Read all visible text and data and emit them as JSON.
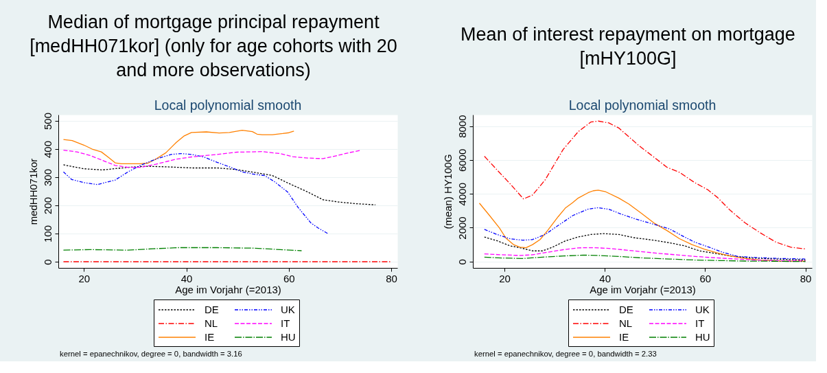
{
  "chart_data": [
    {
      "type": "line",
      "title": "Median of mortgage principal repayment [medHH071kor] (only for age cohorts with 20 and more observations)",
      "subtitle": "Local polynomial smooth",
      "xlabel": "Age im Vorjahr (=2013)",
      "ylabel": "medHH071kor",
      "annotations": [
        "kernel = epanechnikov, degree = 0, bandwidth = 3.16"
      ],
      "xlim": [
        15,
        81.2
      ],
      "ylim": [
        -22,
        522
      ],
      "xticks": [
        20,
        40,
        60,
        80
      ],
      "yticks": [
        0,
        100,
        200,
        300,
        400,
        500
      ],
      "grid": "y",
      "legend": "bottom",
      "series": [
        {
          "name": "DE",
          "color": "#000000",
          "line_style": "dotted",
          "x": [
            16,
            20,
            23.6,
            28.6,
            32,
            36,
            41,
            46,
            49.4,
            53.4,
            56.8,
            60,
            63.3,
            66.7,
            69.7,
            73.2,
            76.9
          ],
          "values": [
            344,
            330,
            326,
            335,
            339,
            337,
            333,
            333,
            328,
            317,
            306,
            278,
            251,
            220,
            212,
            206,
            202
          ]
        },
        {
          "name": "NL",
          "color": "#ff0000",
          "line_style": "dashdot",
          "x": [
            16,
            30,
            50,
            80
          ],
          "values": [
            0,
            0,
            0,
            0
          ]
        },
        {
          "name": "IE",
          "color": "#ff8000",
          "line_style": "solid",
          "x": [
            16,
            17.7,
            20,
            21.6,
            23.4,
            24.9,
            26.1,
            27.3,
            31,
            32.5,
            34,
            36,
            38,
            39.5,
            41,
            43.9,
            46.4,
            48.4,
            50.9,
            52.9,
            53.8,
            54.8,
            56.8,
            58.8,
            60,
            61
          ],
          "values": [
            434,
            430,
            414,
            400,
            390,
            369,
            351,
            348,
            348,
            350,
            364,
            387,
            423,
            446,
            459,
            461,
            457,
            459,
            467,
            462,
            453,
            451,
            451,
            455,
            458,
            464
          ]
        },
        {
          "name": "UK",
          "color": "#0000ff",
          "line_style": "dashdotdot",
          "x": [
            16,
            17.6,
            20,
            22.6,
            26.1,
            28.6,
            31,
            34,
            37,
            39,
            41,
            43.4,
            46,
            48.4,
            50.9,
            53.4,
            55.3,
            57.3,
            59.8,
            61.8,
            64.3,
            65.7,
            67.7
          ],
          "values": [
            319,
            292,
            281,
            274,
            290,
            319,
            342,
            364,
            381,
            384,
            381,
            372,
            353,
            337,
            319,
            310,
            306,
            283,
            247,
            193,
            138,
            120,
            99
          ]
        },
        {
          "name": "IT",
          "color": "#ff00ff",
          "line_style": "dashed",
          "x": [
            16,
            18.6,
            21.1,
            23.6,
            26.1,
            28.6,
            31,
            34,
            38,
            41,
            46,
            49.9,
            54.8,
            58.3,
            60.8,
            63.8,
            66.7,
            69.7,
            71.7,
            73.9
          ],
          "values": [
            396,
            390,
            378,
            360,
            342,
            335,
            335,
            346,
            364,
            372,
            381,
            389,
            391,
            384,
            373,
            368,
            366,
            378,
            387,
            395
          ]
        },
        {
          "name": "HU",
          "color": "#008000",
          "line_style": "longdashdot",
          "x": [
            16,
            21.1,
            28.6,
            33.5,
            38.5,
            46,
            53.4,
            58.3,
            62.5
          ],
          "values": [
            41,
            43,
            41,
            46,
            50,
            50,
            48,
            43,
            39
          ]
        }
      ]
    },
    {
      "type": "line",
      "title": "Mean of interest repayment on mortgage [mHY100G]",
      "subtitle": "Local polynomial smooth",
      "xlabel": "Age im Vorjahr (=2013)",
      "ylabel": "(mean) HY100G",
      "annotations": [
        "kernel = epanechnikov, degree = 0, bandwidth = 2.33"
      ],
      "xlim": [
        13.7,
        81.3
      ],
      "ylim": [
        -375,
        8675
      ],
      "xticks": [
        20,
        40,
        60,
        80
      ],
      "yticks": [
        0,
        2000,
        4000,
        6000,
        8000
      ],
      "grid": "y",
      "legend": "bottom",
      "series": [
        {
          "name": "DE",
          "color": "#000000",
          "line_style": "dotted",
          "x": [
            16,
            18.5,
            21.1,
            23.6,
            25.6,
            27.6,
            29.6,
            32.2,
            34.7,
            37.2,
            39.7,
            42.8,
            45.8,
            49.8,
            52.9,
            55.9,
            58.9,
            62,
            65,
            69,
            74.1,
            80
          ],
          "values": [
            1450,
            1230,
            930,
            780,
            630,
            630,
            850,
            1230,
            1450,
            1600,
            1650,
            1600,
            1410,
            1260,
            1110,
            930,
            630,
            480,
            330,
            210,
            150,
            90
          ]
        },
        {
          "name": "NL",
          "color": "#ff0000",
          "line_style": "dashdot",
          "x": [
            16,
            18.5,
            21.1,
            23.8,
            25.6,
            28.1,
            31.7,
            34.7,
            37.2,
            38.7,
            40.8,
            42.8,
            46.8,
            49.8,
            52.4,
            54.9,
            57.9,
            60.5,
            62.5,
            65,
            68,
            71.1,
            74.1,
            77.1,
            79.9
          ],
          "values": [
            6220,
            5420,
            4600,
            3700,
            3930,
            4820,
            6620,
            7670,
            8240,
            8300,
            8190,
            7890,
            6850,
            6170,
            5570,
            5270,
            4670,
            4250,
            3780,
            3030,
            2280,
            1680,
            1150,
            850,
            750
          ]
        },
        {
          "name": "IE",
          "color": "#ff8000",
          "line_style": "solid",
          "x": [
            15,
            17,
            19,
            20.3,
            21.8,
            23.1,
            24.3,
            25.6,
            27.1,
            28.6,
            30.7,
            32.2,
            33.6,
            34.7,
            36.7,
            37.7,
            38.7,
            40.2,
            42.8,
            44.8,
            47.3,
            49.8,
            52.4,
            54.9,
            57.4,
            59.9,
            62.4,
            65,
            68,
            71.1,
            75.1,
            80
          ],
          "values": [
            3450,
            2730,
            1980,
            1380,
            1000,
            850,
            820,
            1000,
            1300,
            1830,
            2650,
            3180,
            3480,
            3750,
            4070,
            4180,
            4220,
            4120,
            3750,
            3400,
            2850,
            2280,
            1830,
            1350,
            1000,
            730,
            510,
            330,
            180,
            90,
            30,
            20
          ]
        },
        {
          "name": "UK",
          "color": "#0000ff",
          "line_style": "dashdotdot",
          "x": [
            16,
            18.5,
            21.1,
            23.6,
            25.6,
            28.1,
            30.7,
            33.7,
            36.7,
            38.7,
            40.8,
            43.3,
            46.3,
            49.8,
            52.9,
            55.4,
            57.9,
            60.5,
            63.5,
            66.5,
            70,
            75.1,
            80
          ],
          "values": [
            1900,
            1600,
            1350,
            1260,
            1300,
            1600,
            2130,
            2730,
            3100,
            3180,
            3090,
            2800,
            2500,
            2200,
            1930,
            1530,
            1150,
            880,
            550,
            300,
            240,
            180,
            150
          ]
        },
        {
          "name": "IT",
          "color": "#ff00ff",
          "line_style": "dashed",
          "x": [
            16,
            19.5,
            23.1,
            25.6,
            28.6,
            31.7,
            34.7,
            37.7,
            40.8,
            44.8,
            49.8,
            54.9,
            59.9,
            65,
            70,
            75.1,
            80
          ],
          "values": [
            450,
            400,
            360,
            400,
            550,
            700,
            810,
            820,
            780,
            660,
            510,
            380,
            260,
            170,
            90,
            50,
            30
          ]
        },
        {
          "name": "HU",
          "color": "#008000",
          "line_style": "longdashdot",
          "x": [
            16,
            19.5,
            23.6,
            27.6,
            31.7,
            35.7,
            38.7,
            42.8,
            47.8,
            52.9,
            57.9,
            62.9,
            68,
            74.1,
            80
          ],
          "values": [
            260,
            210,
            180,
            260,
            330,
            380,
            360,
            300,
            210,
            150,
            90,
            60,
            30,
            20,
            0
          ]
        }
      ]
    }
  ]
}
